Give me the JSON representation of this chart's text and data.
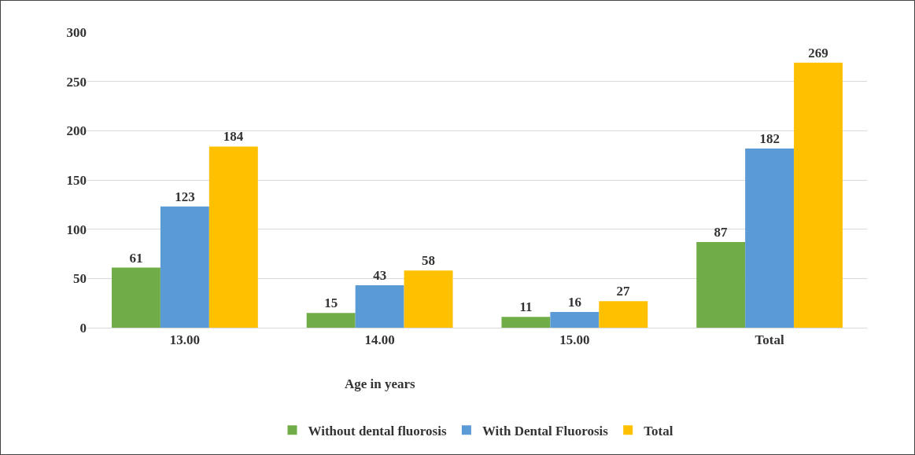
{
  "chart_data": {
    "type": "bar",
    "xlabel": "Age in years",
    "categories": [
      "13.00",
      "14.00",
      "15.00",
      "Total"
    ],
    "series": [
      {
        "name": "Without dental fluorosis",
        "color": "#70ad47",
        "values": [
          61,
          15,
          11,
          87
        ]
      },
      {
        "name": "With Dental Fluorosis",
        "color": "#5b9bd5",
        "values": [
          123,
          43,
          16,
          182
        ]
      },
      {
        "name": "Total",
        "color": "#ffc000",
        "values": [
          184,
          58,
          27,
          269
        ]
      }
    ],
    "ylim": [
      0,
      300
    ],
    "yticks": [
      0,
      50,
      100,
      150,
      200,
      250,
      300
    ],
    "grid": "y",
    "legend": "bottom",
    "data_labels": true
  }
}
